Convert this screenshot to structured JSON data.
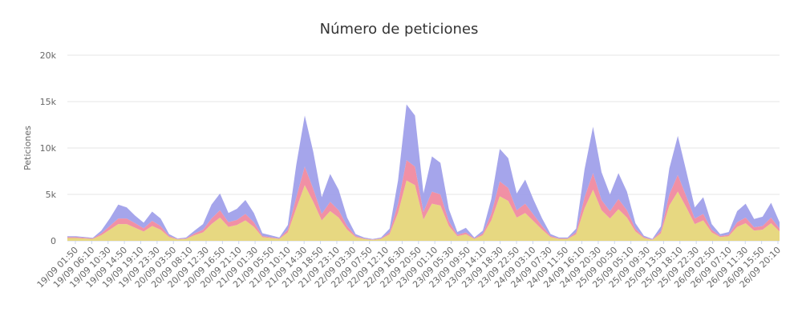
{
  "chart_data": {
    "type": "area",
    "stacked": true,
    "title": "Número de peticiones",
    "xlabel": "",
    "ylabel": "Peticiones",
    "ylim": [
      0,
      20000
    ],
    "yticks": [
      {
        "value": 0,
        "label": "0"
      },
      {
        "value": 5000,
        "label": "5k"
      },
      {
        "value": 10000,
        "label": "10k"
      },
      {
        "value": 15000,
        "label": "15k"
      },
      {
        "value": 20000,
        "label": "20k"
      }
    ],
    "grid": true,
    "legend": "none",
    "x_tick_labels": [
      "19/09 01:50",
      "19/09 06:10",
      "19/09 10:30",
      "19/09 14:50",
      "19/09 19:10",
      "19/09 23:30",
      "20/09 03:50",
      "20/09 08:10",
      "20/09 12:30",
      "20/09 16:50",
      "20/09 21:10",
      "21/09 01:30",
      "21/09 05:50",
      "21/09 10:10",
      "21/09 14:30",
      "21/09 18:50",
      "21/09 23:10",
      "22/09 03:30",
      "22/09 07:50",
      "22/09 12:10",
      "22/09 16:30",
      "22/09 20:50",
      "23/09 01:10",
      "23/09 05:30",
      "23/09 09:50",
      "23/09 14:10",
      "23/09 18:30",
      "23/09 22:50",
      "24/09 03:10",
      "24/09 07:30",
      "24/09 11:50",
      "24/09 16:10",
      "24/09 20:30",
      "25/09 00:50",
      "25/09 05:10",
      "25/09 09:30",
      "25/09 13:50",
      "25/09 18:10",
      "25/09 22:30",
      "26/09 02:50",
      "26/09 07:10",
      "26/09 11:30",
      "26/09 15:50",
      "26/09 20:10"
    ],
    "series": [
      {
        "color": "#e6d67a",
        "values": [
          300,
          300,
          250,
          200,
          600,
          1200,
          1800,
          1800,
          1400,
          1000,
          1600,
          1200,
          400,
          150,
          200,
          600,
          900,
          1800,
          2500,
          1500,
          1700,
          2200,
          1500,
          400,
          300,
          200,
          900,
          3500,
          6000,
          4200,
          2200,
          3200,
          2500,
          1200,
          400,
          200,
          100,
          200,
          700,
          3000,
          6500,
          6000,
          2300,
          4000,
          3800,
          1600,
          500,
          700,
          200,
          600,
          2200,
          4800,
          4300,
          2500,
          3000,
          2100,
          1200,
          400,
          200,
          200,
          700,
          3500,
          5500,
          3300,
          2400,
          3400,
          2500,
          1000,
          300,
          100,
          800,
          3800,
          5300,
          3600,
          1800,
          2200,
          900,
          400,
          500,
          1500,
          1900,
          1100,
          1200,
          1900,
          1000
        ]
      },
      {
        "color": "#f08aa0",
        "values": [
          100,
          100,
          80,
          60,
          200,
          400,
          600,
          600,
          500,
          350,
          550,
          400,
          120,
          40,
          60,
          200,
          300,
          600,
          800,
          500,
          550,
          700,
          500,
          120,
          90,
          60,
          300,
          1200,
          2000,
          1400,
          700,
          1000,
          800,
          400,
          120,
          60,
          40,
          60,
          200,
          1000,
          2200,
          2000,
          800,
          1300,
          1200,
          500,
          150,
          200,
          60,
          200,
          700,
          1600,
          1400,
          800,
          1000,
          700,
          400,
          120,
          60,
          60,
          200,
          1200,
          1800,
          1100,
          800,
          1100,
          800,
          300,
          100,
          40,
          250,
          1200,
          1800,
          1200,
          600,
          700,
          300,
          120,
          150,
          500,
          600,
          350,
          400,
          600,
          300
        ]
      },
      {
        "color": "#a0a0ea",
        "values": [
          100,
          100,
          80,
          60,
          300,
          800,
          1500,
          1200,
          800,
          600,
          1000,
          800,
          200,
          60,
          100,
          300,
          600,
          1500,
          1800,
          1000,
          1200,
          1500,
          1000,
          300,
          200,
          100,
          500,
          3500,
          5500,
          4000,
          1800,
          3000,
          2200,
          900,
          200,
          100,
          50,
          100,
          400,
          2500,
          6000,
          5500,
          2000,
          3800,
          3400,
          1300,
          300,
          500,
          100,
          300,
          1600,
          3500,
          3200,
          1800,
          2600,
          1600,
          800,
          200,
          100,
          100,
          400,
          3000,
          5000,
          3000,
          1800,
          2800,
          2000,
          600,
          150,
          60,
          500,
          2800,
          4200,
          2700,
          1200,
          1800,
          600,
          200,
          300,
          1200,
          1500,
          900,
          1000,
          1600,
          700
        ]
      }
    ]
  }
}
